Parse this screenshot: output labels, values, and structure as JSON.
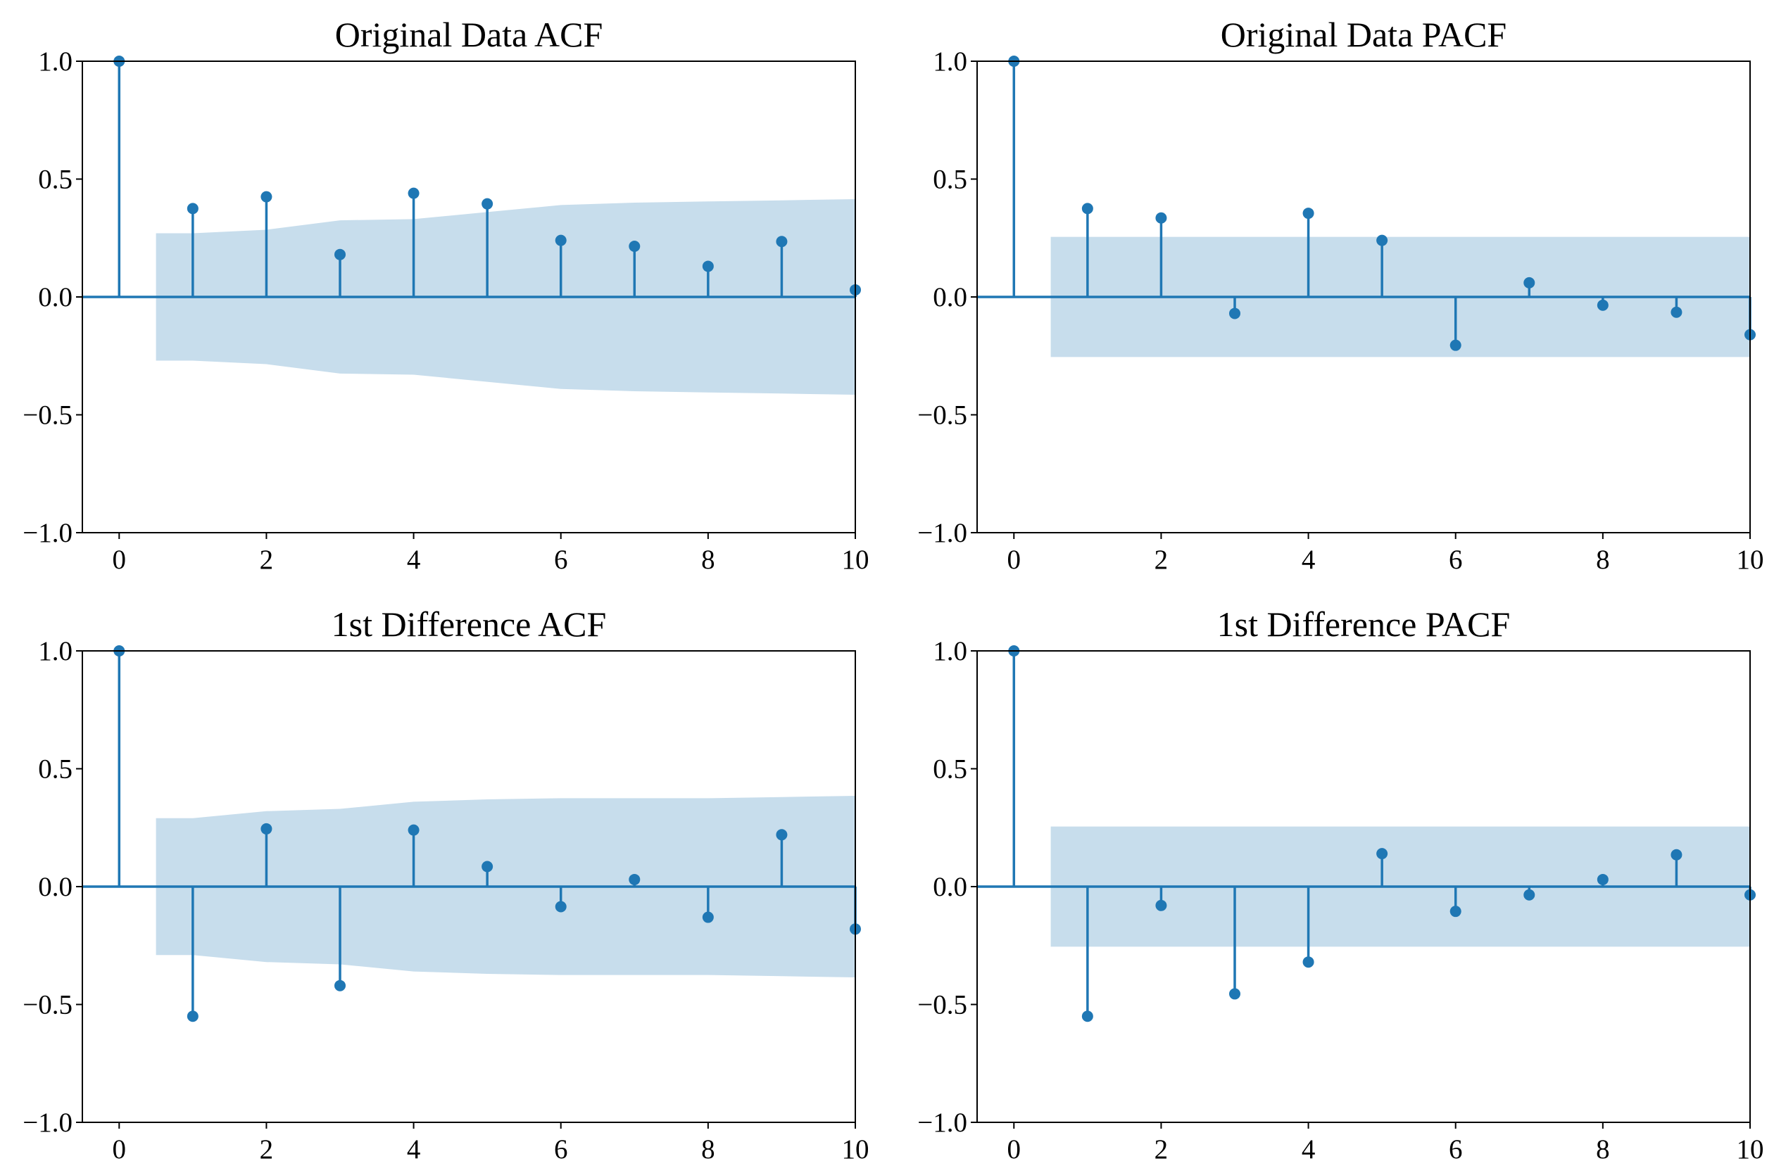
{
  "chart_data": [
    {
      "type": "stem",
      "title": "Original Data ACF",
      "x": [
        0,
        1,
        2,
        3,
        4,
        5,
        6,
        7,
        8,
        9,
        10
      ],
      "values": [
        1.0,
        0.375,
        0.425,
        0.18,
        0.44,
        0.395,
        0.24,
        0.215,
        0.13,
        0.235,
        0.03
      ],
      "confint_upper": [
        0.255,
        0.27,
        0.285,
        0.325,
        0.33,
        0.36,
        0.39,
        0.4,
        0.405,
        0.41,
        0.415
      ],
      "xlim": [
        -0.5,
        10
      ],
      "ylim": [
        -1.0,
        1.0
      ],
      "xticks": [
        0,
        2,
        4,
        6,
        8,
        10
      ],
      "yticks": [
        -1.0,
        -0.5,
        0.0,
        0.5,
        1.0
      ],
      "ytick_labels": [
        "−1.0",
        "−0.5",
        "0.0",
        "0.5",
        "1.0"
      ]
    },
    {
      "type": "stem",
      "title": "Original Data PACF",
      "x": [
        0,
        1,
        2,
        3,
        4,
        5,
        6,
        7,
        8,
        9,
        10
      ],
      "values": [
        1.0,
        0.375,
        0.335,
        -0.07,
        0.355,
        0.24,
        -0.205,
        0.06,
        -0.035,
        -0.065,
        -0.16
      ],
      "confint_upper": [
        0.255,
        0.255,
        0.255,
        0.255,
        0.255,
        0.255,
        0.255,
        0.255,
        0.255,
        0.255,
        0.255
      ],
      "xlim": [
        -0.5,
        10
      ],
      "ylim": [
        -1.0,
        1.0
      ],
      "xticks": [
        0,
        2,
        4,
        6,
        8,
        10
      ],
      "yticks": [
        -1.0,
        -0.5,
        0.0,
        0.5,
        1.0
      ],
      "ytick_labels": [
        "−1.0",
        "−0.5",
        "0.0",
        "0.5",
        "1.0"
      ]
    },
    {
      "type": "stem",
      "title": "1st Difference ACF",
      "x": [
        0,
        1,
        2,
        3,
        4,
        5,
        6,
        7,
        8,
        9,
        10
      ],
      "values": [
        1.0,
        -0.55,
        0.245,
        -0.42,
        0.24,
        0.085,
        -0.085,
        0.03,
        -0.13,
        0.22,
        -0.18
      ],
      "confint_upper": [
        0.255,
        0.29,
        0.32,
        0.33,
        0.36,
        0.37,
        0.375,
        0.375,
        0.375,
        0.38,
        0.385
      ],
      "xlim": [
        -0.5,
        10
      ],
      "ylim": [
        -1.0,
        1.0
      ],
      "xticks": [
        0,
        2,
        4,
        6,
        8,
        10
      ],
      "yticks": [
        -1.0,
        -0.5,
        0.0,
        0.5,
        1.0
      ],
      "ytick_labels": [
        "−1.0",
        "−0.5",
        "0.0",
        "0.5",
        "1.0"
      ]
    },
    {
      "type": "stem",
      "title": "1st Difference PACF",
      "x": [
        0,
        1,
        2,
        3,
        4,
        5,
        6,
        7,
        8,
        9,
        10
      ],
      "values": [
        1.0,
        -0.55,
        -0.08,
        -0.455,
        -0.32,
        0.14,
        -0.105,
        -0.035,
        0.03,
        0.135,
        -0.035
      ],
      "confint_upper": [
        0.255,
        0.255,
        0.255,
        0.255,
        0.255,
        0.255,
        0.255,
        0.255,
        0.255,
        0.255,
        0.255
      ],
      "xlim": [
        -0.5,
        10
      ],
      "ylim": [
        -1.0,
        1.0
      ],
      "xticks": [
        0,
        2,
        4,
        6,
        8,
        10
      ],
      "yticks": [
        -1.0,
        -0.5,
        0.0,
        0.5,
        1.0
      ],
      "ytick_labels": [
        "−1.0",
        "−0.5",
        "0.0",
        "0.5",
        "1.0"
      ]
    }
  ],
  "colors": {
    "series": "#1f77b4",
    "band": "#1f77b4",
    "axes": "#000000"
  }
}
